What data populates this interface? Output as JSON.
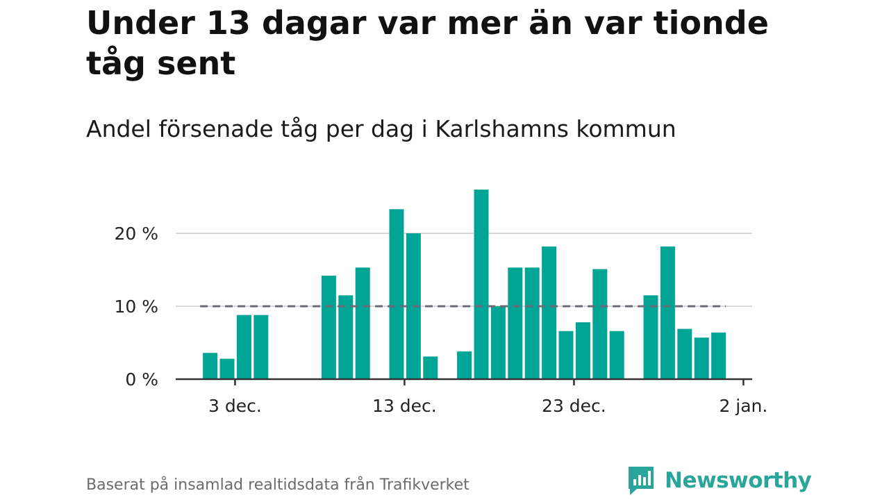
{
  "title": "Under 13 dagar var mer än var tionde tåg sent",
  "subtitle": "Andel försenade tåg per dag i Karlshamns kommun",
  "footer": "Baserat på insamlad realtidsdata från Trafikverket",
  "brand": {
    "name": "Newsworthy",
    "icon": "newsworthy-logo-icon",
    "color": "#2aa59a"
  },
  "colors": {
    "bar": "#00a595",
    "reference_line": "#6b6b78",
    "grid": "#d9d9d9",
    "axis": "#333333"
  },
  "chart_data": {
    "type": "bar",
    "title": "Under 13 dagar var mer än var tionde tåg sent",
    "subtitle": "Andel försenade tåg per dag i Karlshamns kommun",
    "xlabel": "",
    "ylabel": "",
    "x_unit": "date",
    "x_start": "2022-11-30",
    "x_end": "2023-01-02",
    "ylim": [
      0,
      26
    ],
    "y_ticks": [
      {
        "value": 0,
        "label": "0 %"
      },
      {
        "value": 10,
        "label": "10 %"
      },
      {
        "value": 20,
        "label": "20 %"
      }
    ],
    "x_ticks": [
      {
        "date": "2022-12-03",
        "label": "3 dec."
      },
      {
        "date": "2022-12-13",
        "label": "13 dec."
      },
      {
        "date": "2022-12-23",
        "label": "23 dec."
      },
      {
        "date": "2023-01-02",
        "label": "2 jan."
      }
    ],
    "reference_line": {
      "value": 10,
      "style": "dashed"
    },
    "grid": true,
    "legend": "none",
    "series": [
      {
        "values": [
          {
            "date": "2022-12-01",
            "value": 3.6
          },
          {
            "date": "2022-12-02",
            "value": 2.8
          },
          {
            "date": "2022-12-03",
            "value": 8.8
          },
          {
            "date": "2022-12-04",
            "value": 8.8
          },
          {
            "date": "2022-12-08",
            "value": 14.2
          },
          {
            "date": "2022-12-09",
            "value": 11.5
          },
          {
            "date": "2022-12-10",
            "value": 15.3
          },
          {
            "date": "2022-12-12",
            "value": 23.3
          },
          {
            "date": "2022-12-13",
            "value": 20.0
          },
          {
            "date": "2022-12-14",
            "value": 3.1
          },
          {
            "date": "2022-12-16",
            "value": 3.8
          },
          {
            "date": "2022-12-17",
            "value": 26.0
          },
          {
            "date": "2022-12-18",
            "value": 10.0
          },
          {
            "date": "2022-12-19",
            "value": 15.3
          },
          {
            "date": "2022-12-20",
            "value": 15.3
          },
          {
            "date": "2022-12-21",
            "value": 18.2
          },
          {
            "date": "2022-12-22",
            "value": 6.6
          },
          {
            "date": "2022-12-23",
            "value": 7.8
          },
          {
            "date": "2022-12-24",
            "value": 15.1
          },
          {
            "date": "2022-12-25",
            "value": 6.6
          },
          {
            "date": "2022-12-27",
            "value": 11.5
          },
          {
            "date": "2022-12-28",
            "value": 18.2
          },
          {
            "date": "2022-12-29",
            "value": 6.9
          },
          {
            "date": "2022-12-30",
            "value": 5.7
          },
          {
            "date": "2022-12-31",
            "value": 6.4
          }
        ]
      }
    ]
  }
}
